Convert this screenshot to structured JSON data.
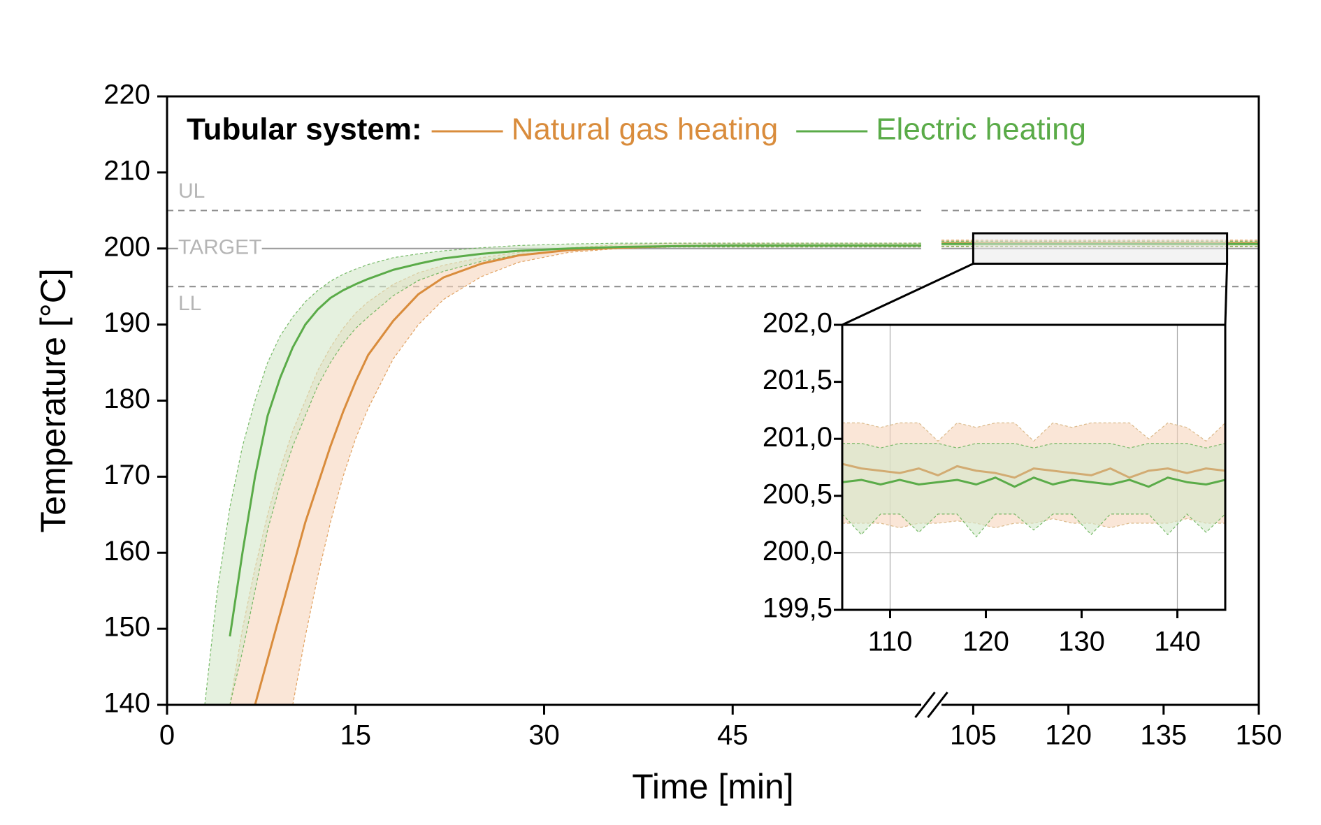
{
  "chart_data": [
    {
      "type": "line",
      "xlabel": "Time [min]",
      "ylabel": "Temperature [°C]",
      "x": [
        3,
        4,
        5,
        6,
        7,
        8,
        9,
        10,
        11,
        12,
        13,
        14,
        15,
        16,
        18,
        20,
        22,
        25,
        28,
        32,
        36,
        40,
        45,
        50,
        55,
        60,
        100,
        105,
        110,
        115,
        120,
        125,
        130,
        135,
        140,
        145,
        150
      ],
      "xlim": [
        0,
        150
      ],
      "x_break": [
        60,
        100
      ],
      "xticks": [
        0,
        15,
        30,
        45,
        105,
        120,
        135,
        150
      ],
      "ylim": [
        140,
        220
      ],
      "yticks": [
        140,
        150,
        160,
        170,
        180,
        190,
        200,
        210,
        220
      ],
      "legend": {
        "title": "Tubular system:",
        "position": "top-left"
      },
      "reference_lines": [
        {
          "label": "UL",
          "value": 205,
          "style": "dashed"
        },
        {
          "label": "TARGET",
          "value": 200,
          "style": "solid"
        },
        {
          "label": "LL",
          "value": 195,
          "style": "dashed"
        }
      ],
      "zoom_box": {
        "xlim": [
          105,
          145
        ],
        "ylim": [
          198,
          202
        ]
      },
      "series": [
        {
          "name": "Natural gas heating",
          "color": "#d98c3c",
          "band_color": "#f6d6bd",
          "values": [
            null,
            null,
            null,
            null,
            140,
            146,
            152,
            158,
            164,
            169,
            174,
            178.5,
            182.5,
            186,
            190.5,
            194,
            196.2,
            198,
            199.1,
            199.8,
            200.1,
            200.3,
            200.4,
            200.4,
            200.4,
            200.4,
            200.7,
            200.7,
            200.7,
            200.7,
            200.7,
            200.7,
            200.7,
            200.7,
            200.7,
            200.7,
            200.7
          ],
          "upper": [
            null,
            null,
            140,
            150,
            158,
            165,
            171,
            176,
            180,
            184,
            187,
            189.5,
            191.5,
            193,
            195.3,
            196.8,
            197.8,
            198.8,
            199.5,
            200.1,
            200.5,
            200.7,
            200.7,
            200.7,
            200.7,
            200.7,
            201.1,
            201.1,
            201.1,
            201.1,
            201.1,
            201.1,
            201.1,
            201.1,
            201.1,
            201.1,
            201.1
          ],
          "lower": [
            null,
            null,
            null,
            null,
            null,
            null,
            null,
            140,
            149,
            157,
            164,
            170,
            175,
            179,
            185.5,
            190,
            193.3,
            196.3,
            198.2,
            199.5,
            200,
            200.2,
            200.2,
            200.2,
            200.2,
            200.2,
            200.25,
            200.25,
            200.25,
            200.25,
            200.25,
            200.25,
            200.25,
            200.25,
            200.25,
            200.25,
            200.25
          ]
        },
        {
          "name": "Electric heating",
          "color": "#5aab48",
          "band_color": "#d3e8c9",
          "values": [
            null,
            null,
            149,
            160,
            170,
            178,
            183,
            187,
            190,
            192,
            193.5,
            194.5,
            195.3,
            196,
            197.2,
            198,
            198.7,
            199.3,
            199.7,
            200,
            200.2,
            200.3,
            200.4,
            200.4,
            200.4,
            200.4,
            200.6,
            200.6,
            200.6,
            200.6,
            200.6,
            200.6,
            200.6,
            200.6,
            200.6,
            200.6,
            200.6
          ],
          "upper": [
            140,
            155,
            166,
            174,
            180,
            185,
            188.5,
            191,
            193,
            194.5,
            195.7,
            196.6,
            197.3,
            197.9,
            198.8,
            199.3,
            199.7,
            200.1,
            200.4,
            200.6,
            200.7,
            200.7,
            200.7,
            200.7,
            200.7,
            200.7,
            200.95,
            200.95,
            200.95,
            200.95,
            200.95,
            200.95,
            200.95,
            200.95,
            200.95,
            200.95,
            200.95
          ],
          "lower": [
            null,
            null,
            140,
            147,
            155,
            163,
            169,
            174,
            178,
            182,
            185,
            187.5,
            189.5,
            191,
            193.8,
            195.8,
            197,
            198.3,
            199.2,
            199.8,
            200,
            200.2,
            200.2,
            200.2,
            200.2,
            200.2,
            200.3,
            200.3,
            200.3,
            200.3,
            200.3,
            200.3,
            200.3,
            200.3,
            200.3,
            200.3,
            200.3
          ]
        }
      ]
    },
    {
      "type": "line",
      "x": [
        105,
        107,
        109,
        111,
        113,
        115,
        117,
        119,
        121,
        123,
        125,
        127,
        129,
        131,
        133,
        135,
        137,
        139,
        141,
        143,
        145
      ],
      "xlim": [
        105,
        145
      ],
      "xticks": [
        110,
        120,
        130,
        140
      ],
      "ylim": [
        199.5,
        202
      ],
      "yticks": [
        {
          "value": 199.5,
          "label": "199,5"
        },
        {
          "value": 200,
          "label": "200,0"
        },
        {
          "value": 200.5,
          "label": "200,5"
        },
        {
          "value": 201,
          "label": "201,0"
        },
        {
          "value": 201.5,
          "label": "201,5"
        },
        {
          "value": 202,
          "label": "202,0"
        }
      ],
      "xgrid": [
        110,
        140
      ],
      "ygrid": [
        200
      ],
      "series": [
        {
          "color": "#d2ab72",
          "band_color": "#f6d6bd",
          "values": [
            200.78,
            200.74,
            200.72,
            200.7,
            200.74,
            200.68,
            200.76,
            200.72,
            200.7,
            200.66,
            200.74,
            200.72,
            200.7,
            200.68,
            200.74,
            200.66,
            200.72,
            200.74,
            200.7,
            200.74,
            200.72
          ],
          "upper": [
            201.14,
            201.14,
            201.1,
            201.14,
            201.14,
            200.98,
            201.14,
            201.1,
            201.14,
            201.14,
            200.98,
            201.14,
            201.1,
            201.14,
            201.14,
            201.14,
            201,
            201.14,
            201.1,
            200.98,
            201.14
          ],
          "lower": [
            200.26,
            200.26,
            200.26,
            200.22,
            200.26,
            200.26,
            200.28,
            200.26,
            200.22,
            200.26,
            200.26,
            200.3,
            200.26,
            200.26,
            200.22,
            200.26,
            200.26,
            200.26,
            200.3,
            200.26,
            200.26
          ]
        },
        {
          "color": "#5aab48",
          "band_color": "#d3e8c9",
          "values": [
            200.62,
            200.64,
            200.6,
            200.64,
            200.6,
            200.62,
            200.64,
            200.6,
            200.66,
            200.58,
            200.66,
            200.6,
            200.64,
            200.62,
            200.6,
            200.64,
            200.58,
            200.66,
            200.62,
            200.6,
            200.64
          ],
          "upper": [
            200.96,
            200.96,
            200.92,
            200.96,
            200.96,
            200.96,
            200.92,
            200.96,
            200.96,
            200.96,
            200.92,
            200.96,
            200.96,
            200.96,
            200.96,
            200.92,
            200.96,
            200.96,
            200.96,
            200.92,
            200.96
          ],
          "lower": [
            200.34,
            200.16,
            200.34,
            200.34,
            200.18,
            200.34,
            200.34,
            200.14,
            200.34,
            200.34,
            200.2,
            200.34,
            200.34,
            200.16,
            200.34,
            200.34,
            200.34,
            200.16,
            200.34,
            200.18,
            200.34
          ]
        }
      ]
    }
  ]
}
